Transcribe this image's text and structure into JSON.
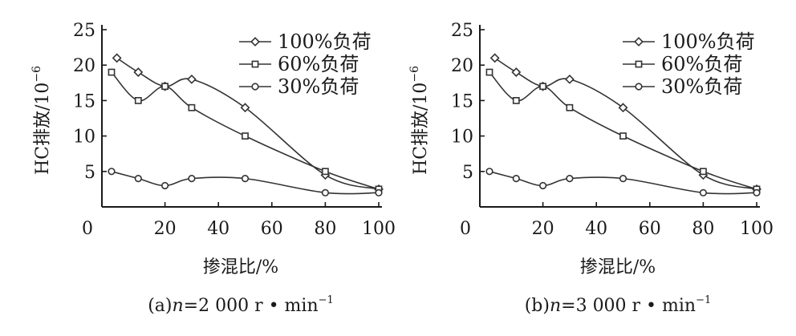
{
  "chart_data": [
    {
      "type": "line",
      "caption_prefix": "(a)",
      "caption_var": "n",
      "caption_value": "=2 000 r • min",
      "caption_sup": "−1",
      "xlabel": "掺混比/%",
      "ylabel_main": "HC排放/10",
      "ylabel_sup": "−6",
      "xlim": [
        0,
        100
      ],
      "ylim": [
        0,
        25
      ],
      "x_ticks": [
        "0",
        "20",
        "40",
        "60",
        "80",
        "100"
      ],
      "y_ticks": [
        "5",
        "10",
        "15",
        "20",
        "25"
      ],
      "grid": false,
      "legend_position": "top-right",
      "series": [
        {
          "name": "100%负荷",
          "marker": "diamond",
          "x": [
            2,
            10,
            20,
            30,
            50,
            80,
            100
          ],
          "y": [
            21,
            19,
            17,
            18,
            14,
            4.5,
            2.5
          ]
        },
        {
          "name": "60%负荷",
          "marker": "square",
          "x": [
            0,
            10,
            20,
            30,
            50,
            80,
            100
          ],
          "y": [
            19,
            15,
            17,
            14,
            10,
            5,
            2.5
          ]
        },
        {
          "name": "30%负荷",
          "marker": "circle",
          "x": [
            0,
            10,
            20,
            30,
            50,
            80,
            100
          ],
          "y": [
            5,
            4,
            3,
            4,
            4,
            2,
            2
          ]
        }
      ]
    },
    {
      "type": "line",
      "caption_prefix": "(b)",
      "caption_var": "n",
      "caption_value": "=3 000 r • min",
      "caption_sup": "−1",
      "xlabel": "掺混比/%",
      "ylabel_main": "HC排放/10",
      "ylabel_sup": "−6",
      "xlim": [
        0,
        100
      ],
      "ylim": [
        0,
        25
      ],
      "x_ticks": [
        "0",
        "20",
        "40",
        "60",
        "80",
        "100"
      ],
      "y_ticks": [
        "5",
        "10",
        "15",
        "20",
        "25"
      ],
      "grid": false,
      "legend_position": "top-right",
      "series": [
        {
          "name": "100%负荷",
          "marker": "diamond",
          "x": [
            2,
            10,
            20,
            30,
            50,
            80,
            100
          ],
          "y": [
            21,
            19,
            17,
            18,
            14,
            4.5,
            2.5
          ]
        },
        {
          "name": "60%负荷",
          "marker": "square",
          "x": [
            0,
            10,
            20,
            30,
            50,
            80,
            100
          ],
          "y": [
            19,
            15,
            17,
            14,
            10,
            5,
            2.5
          ]
        },
        {
          "name": "30%负荷",
          "marker": "circle",
          "x": [
            0,
            10,
            20,
            30,
            50,
            80,
            100
          ],
          "y": [
            5,
            4,
            3,
            4,
            4,
            2,
            2
          ]
        }
      ]
    }
  ]
}
